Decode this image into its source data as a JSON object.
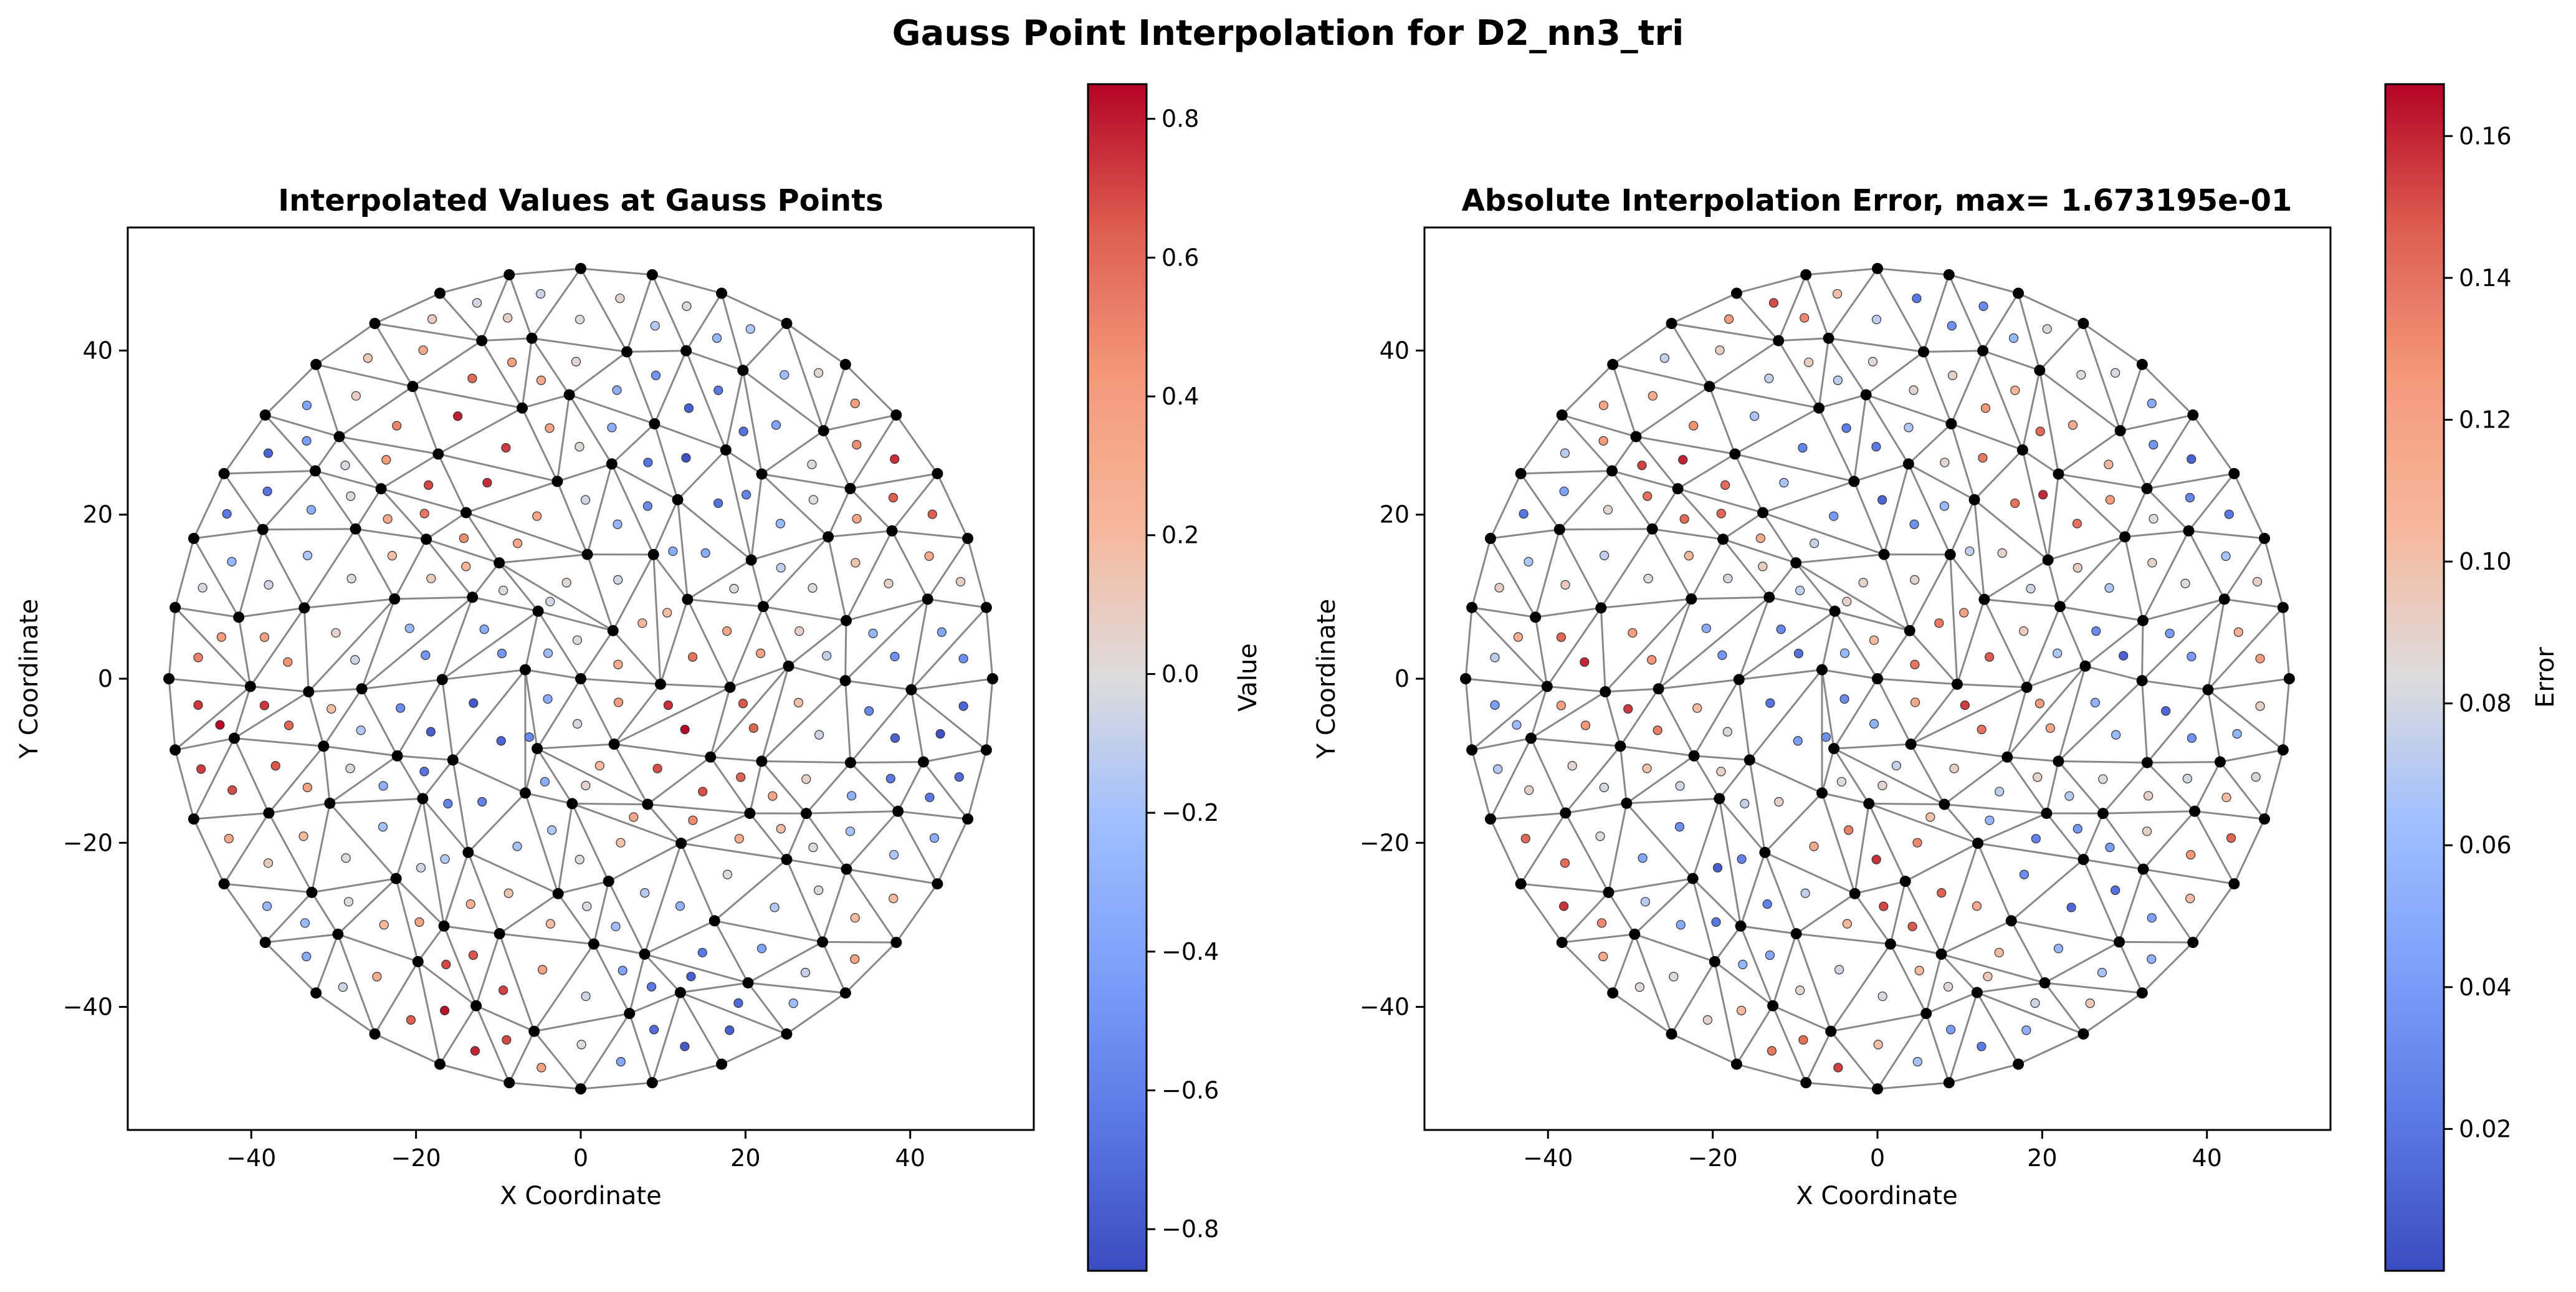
{
  "figure": {
    "suptitle": "Gauss Point Interpolation for D2_nn3_tri"
  },
  "chart_data": [
    {
      "type": "scatter",
      "title": "Interpolated Values at Gauss Points",
      "xlabel": "X Coordinate",
      "ylabel": "Y Coordinate",
      "xlim": [
        -55,
        55
      ],
      "ylim": [
        -55,
        55
      ],
      "xticks": [
        -40,
        -20,
        0,
        20,
        40
      ],
      "yticks": [
        -40,
        -20,
        0,
        20,
        40
      ],
      "xtick_labels": [
        "−40",
        "−20",
        "0",
        "20",
        "40"
      ],
      "ytick_labels": [
        "−40",
        "−20",
        "0",
        "20",
        "40"
      ],
      "grid": false,
      "mesh": {
        "type": "triangular",
        "domain": "circle",
        "radius": 50,
        "node_color": "#000000",
        "edge_color": "#888888"
      },
      "field": "value",
      "colorbar": {
        "label": "Value",
        "colormap": "coolwarm",
        "range": [
          -0.86,
          0.85
        ],
        "ticks": [
          -0.8,
          -0.6,
          -0.4,
          -0.2,
          0.0,
          0.2,
          0.4,
          0.6,
          0.8
        ],
        "tick_labels": [
          "−0.8",
          "−0.6",
          "−0.4",
          "−0.2",
          "0.0",
          "0.2",
          "0.4",
          "0.6",
          "0.8"
        ]
      }
    },
    {
      "type": "scatter",
      "title": "Absolute Interpolation Error, max= 1.673195e-01",
      "xlabel": "X Coordinate",
      "ylabel": "Y Coordinate",
      "xlim": [
        -55,
        55
      ],
      "ylim": [
        -55,
        55
      ],
      "xticks": [
        -40,
        -20,
        0,
        20,
        40
      ],
      "yticks": [
        -40,
        -20,
        0,
        20,
        40
      ],
      "xtick_labels": [
        "−40",
        "−20",
        "0",
        "20",
        "40"
      ],
      "ytick_labels": [
        "−40",
        "−20",
        "0",
        "20",
        "40"
      ],
      "grid": false,
      "mesh": {
        "type": "triangular",
        "domain": "circle",
        "radius": 50,
        "node_color": "#000000",
        "edge_color": "#888888"
      },
      "field": "error",
      "colorbar": {
        "label": "Error",
        "colormap": "coolwarm",
        "range": [
          0.0,
          0.1673195
        ],
        "ticks": [
          0.02,
          0.04,
          0.06,
          0.08,
          0.1,
          0.12,
          0.14,
          0.16
        ],
        "tick_labels": [
          "0.02",
          "0.04",
          "0.06",
          "0.08",
          "0.10",
          "0.12",
          "0.14",
          "0.16"
        ]
      }
    }
  ]
}
